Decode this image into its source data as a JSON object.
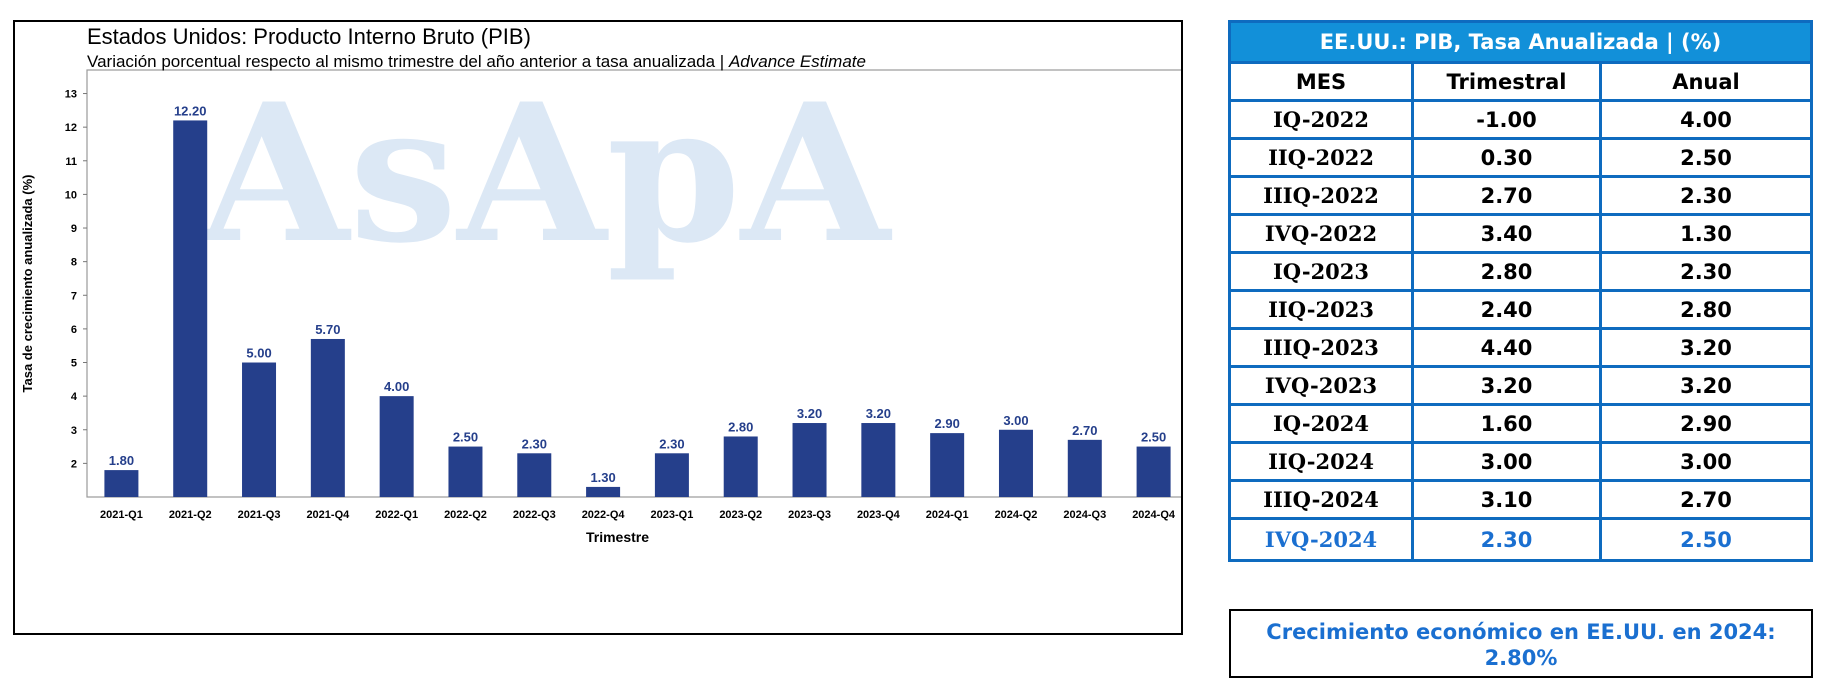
{
  "chart_data": {
    "type": "bar",
    "title": "Estados Unidos: Producto Interno Bruto (PIB)",
    "subtitle": "Variación porcentual respecto al mismo trimestre del año anterior a tasa anualizada  |",
    "subtitle_estimate": "Advance Estimate",
    "watermark": "AsApA",
    "xlabel": "Trimestre",
    "ylabel": "Tasa de crecimiento anualizada (%)",
    "categories": [
      "2021-Q1",
      "2021-Q2",
      "2021-Q3",
      "2021-Q4",
      "2022-Q1",
      "2022-Q2",
      "2022-Q3",
      "2022-Q4",
      "2023-Q1",
      "2023-Q2",
      "2023-Q3",
      "2023-Q4",
      "2024-Q1",
      "2024-Q2",
      "2024-Q3",
      "2024-Q4"
    ],
    "values": [
      1.8,
      12.2,
      5.0,
      5.7,
      4.0,
      2.5,
      2.3,
      1.3,
      2.3,
      2.8,
      3.2,
      3.2,
      2.9,
      3.0,
      2.7,
      2.5
    ],
    "yticks": [
      2,
      3,
      4,
      5,
      6,
      7,
      8,
      9,
      10,
      11,
      12,
      13
    ],
    "ylim": [
      1.0,
      13.7
    ],
    "bar_color": "#253f8b",
    "label_color": "#253f8b",
    "watermark_color": "#dce8f5",
    "grid": false
  },
  "table": {
    "title": "EE.UU.: PIB, Tasa  Anualizada | (%)",
    "headers": [
      "MES",
      "Trimestral",
      "Anual"
    ],
    "rows": [
      {
        "mes": "IQ-2022",
        "trimestral": "-1.00",
        "anual": "4.00"
      },
      {
        "mes": "IIQ-2022",
        "trimestral": "0.30",
        "anual": "2.50"
      },
      {
        "mes": "IIIQ-2022",
        "trimestral": "2.70",
        "anual": "2.30"
      },
      {
        "mes": "IVQ-2022",
        "trimestral": "3.40",
        "anual": "1.30"
      },
      {
        "mes": "IQ-2023",
        "trimestral": "2.80",
        "anual": "2.30"
      },
      {
        "mes": "IIQ-2023",
        "trimestral": "2.40",
        "anual": "2.80"
      },
      {
        "mes": "IIIQ-2023",
        "trimestral": "4.40",
        "anual": "3.20"
      },
      {
        "mes": "IVQ-2023",
        "trimestral": "3.20",
        "anual": "3.20"
      },
      {
        "mes": "IQ-2024",
        "trimestral": "1.60",
        "anual": "2.90"
      },
      {
        "mes": "IIQ-2024",
        "trimestral": "3.00",
        "anual": "3.00"
      },
      {
        "mes": "IIIQ-2024",
        "trimestral": "3.10",
        "anual": "2.70"
      },
      {
        "mes": "IVQ-2024",
        "trimestral": "2.30",
        "anual": "2.50"
      }
    ],
    "border_color": "#0e6bbf",
    "header_bg": "#1290d9",
    "highlight_color": "#1a6fd0"
  },
  "summary": {
    "line1": "Crecimiento económico en EE.UU. en 2024:",
    "line2": "2.80%"
  }
}
